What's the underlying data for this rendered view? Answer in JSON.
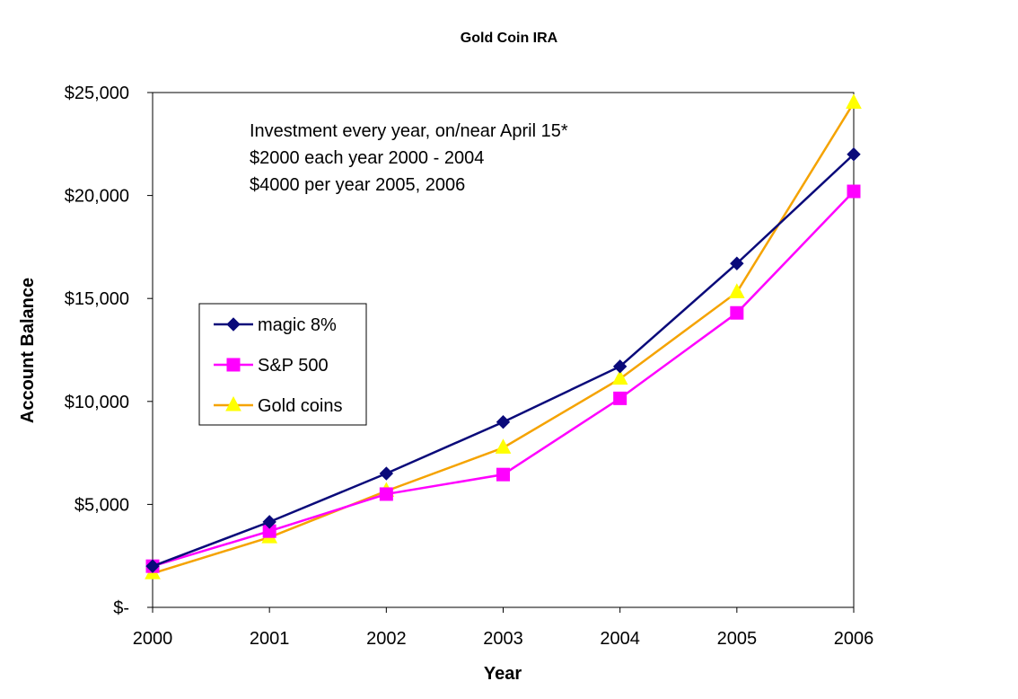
{
  "chart_data": {
    "type": "line",
    "title": "Gold Coin IRA",
    "xlabel": "Year",
    "ylabel": "Account Balance",
    "x": [
      "2000",
      "2001",
      "2002",
      "2003",
      "2004",
      "2005",
      "2006"
    ],
    "ylim": [
      0,
      25000
    ],
    "yticks": [
      0,
      5000,
      10000,
      15000,
      20000,
      25000
    ],
    "ytick_labels": [
      "$-",
      "$5,000",
      "$10,000",
      "$15,000",
      "$20,000",
      "$25,000"
    ],
    "grid": false,
    "legend_position": "left-middle",
    "annotation": [
      "Investment every year, on/near April 15*",
      "$2000 each year 2000 - 2004",
      "$4000 per year 2005, 2006"
    ],
    "series": [
      {
        "name": "magic 8%",
        "marker": "diamond",
        "color": "#0a0a7a",
        "values": [
          2000,
          4150,
          6500,
          9000,
          11700,
          16700,
          22000
        ]
      },
      {
        "name": "S&P 500",
        "marker": "square",
        "color": "#ff00ff",
        "values": [
          2000,
          3700,
          5500,
          6450,
          10150,
          14300,
          20200
        ]
      },
      {
        "name": "Gold coins",
        "marker": "triangle",
        "color": "#f5a300",
        "marker_color": "#ffff00",
        "values": [
          1650,
          3400,
          5650,
          7750,
          11100,
          15300,
          24500
        ]
      }
    ]
  }
}
